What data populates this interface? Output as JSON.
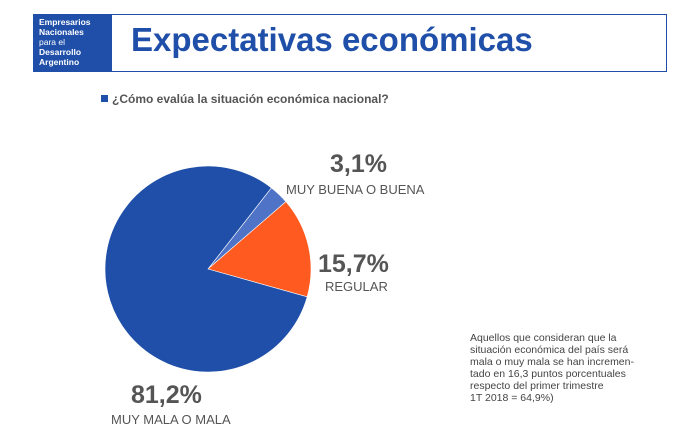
{
  "header": {
    "logo_lines": [
      "Empresarios",
      "Nacionales",
      "para el",
      "Desarrollo",
      "Argentino"
    ],
    "title": "Expectativas económicas"
  },
  "colors": {
    "primary_blue": "#1f4fa8",
    "secondary_blue": "#4f74c7",
    "orange": "#ff5a1f"
  },
  "chart_data": {
    "type": "pie",
    "title": "¿Cómo evalúa la situación económica nacional?",
    "slices": [
      {
        "label": "MUY BUENA O BUENA",
        "value": 3.1,
        "display": "3,1%",
        "color": "#4f74c7"
      },
      {
        "label": "REGULAR",
        "value": 15.7,
        "display": "15,7%",
        "color": "#ff5a1f"
      },
      {
        "label": "MUY MALA O MALA",
        "value": 81.2,
        "display": "81,2%",
        "color": "#1f4fa8"
      }
    ]
  },
  "note_lines": [
    "Aquellos que consideran que la",
    "situación económica del país será",
    "mala o muy mala se han incremen-",
    "tado en 16,3 puntos porcentuales",
    "respecto del primer trimestre",
    "1T 2018 = 64,9%)"
  ]
}
